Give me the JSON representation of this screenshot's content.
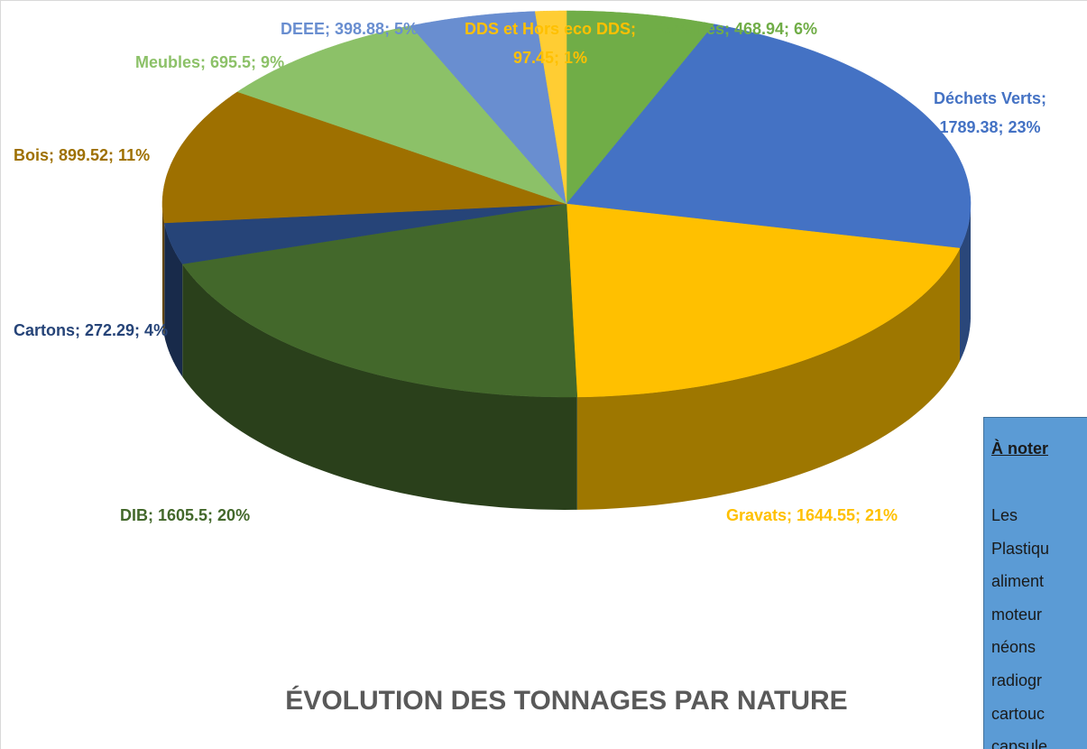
{
  "chart_data": {
    "type": "pie",
    "title": "ÉVOLUTION DES TONNAGES PAR NATURE",
    "values": [
      468.94,
      1789.38,
      1644.55,
      1605.5,
      272.29,
      899.52,
      695.5,
      398.88,
      97.45
    ],
    "value_labels": [
      "Ferrailles; 468.94; 6%",
      "Déchets Verts; 1789.38; 23%",
      "Gravats; 1644.55; 21%",
      "DIB; 1605.5; 20%",
      "Cartons; 272.29; 4%",
      "Bois; 899.52; 11%",
      "Meubles; 695.5; 9%",
      "DEEE; 398.88; 5%",
      "DDS et Hors eco DDS; 97.45; 1%"
    ],
    "colors": [
      "#70ad47",
      "#4472c4",
      "#ffc000",
      "#43682b",
      "#264478",
      "#9e7000",
      "#8cc168",
      "#698ed0",
      "#ffcd33"
    ]
  },
  "note": {
    "title": "À noter",
    "lines": [
      "Les",
      "Plastiqu",
      "aliment",
      "moteur",
      "néons",
      "radiogr",
      "cartouc",
      "capsule"
    ]
  }
}
